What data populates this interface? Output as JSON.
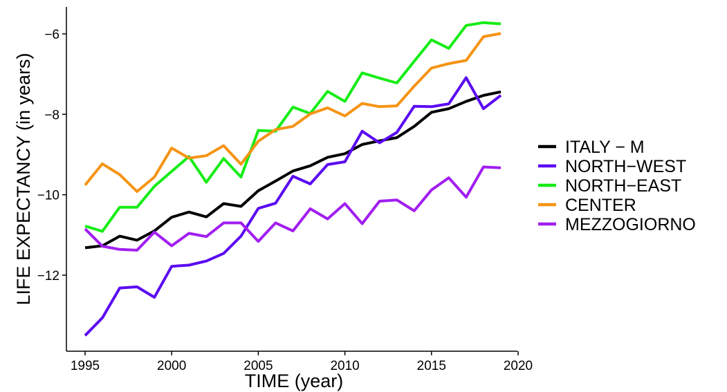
{
  "chart_data": {
    "type": "line",
    "title": "",
    "xlabel": "TIME (year)",
    "ylabel": "LIFE EXPECTANCY (in years)",
    "xlim": [
      1995,
      2020
    ],
    "ylim": [
      -13.7,
      -5.4
    ],
    "x_ticks": [
      1995,
      2000,
      2005,
      2010,
      2015,
      2020
    ],
    "y_ticks": [
      -12,
      -10,
      -8,
      -6
    ],
    "grid": false,
    "legend_position": "right",
    "x": [
      1995,
      1996,
      1997,
      1998,
      1999,
      2000,
      2001,
      2002,
      2003,
      2004,
      2005,
      2006,
      2007,
      2008,
      2009,
      2010,
      2011,
      2012,
      2013,
      2014,
      2015,
      2016,
      2017,
      2018,
      2019
    ],
    "series": [
      {
        "name": "ITALY − M",
        "color": "#000000",
        "values": [
          -11.32,
          -11.27,
          -11.03,
          -11.13,
          -10.9,
          -10.56,
          -10.43,
          -10.55,
          -10.22,
          -10.29,
          -9.9,
          -9.66,
          -9.41,
          -9.28,
          -9.07,
          -8.98,
          -8.75,
          -8.66,
          -8.58,
          -8.3,
          -7.95,
          -7.86,
          -7.68,
          -7.53,
          -7.44
        ]
      },
      {
        "name": "NORTH−WEST",
        "color": "#5b0bf2",
        "values": [
          -13.5,
          -13.06,
          -12.32,
          -12.29,
          -12.55,
          -11.78,
          -11.75,
          -11.65,
          -11.46,
          -11.03,
          -10.34,
          -10.21,
          -9.54,
          -9.73,
          -9.25,
          -9.18,
          -8.42,
          -8.71,
          -8.45,
          -7.8,
          -7.81,
          -7.74,
          -7.09,
          -7.86,
          -7.53
        ]
      },
      {
        "name": "NORTH−EAST",
        "color": "#16ec16",
        "values": [
          -10.78,
          -10.91,
          -10.31,
          -10.31,
          -9.79,
          -9.42,
          -9.05,
          -9.69,
          -9.1,
          -9.56,
          -8.4,
          -8.42,
          -7.82,
          -7.98,
          -7.43,
          -7.68,
          -6.97,
          -7.1,
          -7.22,
          -6.68,
          -6.15,
          -6.36,
          -5.79,
          -5.72,
          -5.75
        ]
      },
      {
        "name": "CENTER",
        "color": "#f59414",
        "values": [
          -9.76,
          -9.23,
          -9.5,
          -9.92,
          -9.56,
          -8.84,
          -9.09,
          -9.03,
          -8.78,
          -9.24,
          -8.67,
          -8.38,
          -8.3,
          -7.99,
          -7.84,
          -8.04,
          -7.73,
          -7.81,
          -7.79,
          -7.3,
          -6.85,
          -6.74,
          -6.66,
          -6.07,
          -5.99
        ]
      },
      {
        "name": "MEZZOGIORNO",
        "color": "#a21ef0",
        "values": [
          -10.85,
          -11.28,
          -11.36,
          -11.38,
          -10.93,
          -11.27,
          -10.96,
          -11.04,
          -10.7,
          -10.7,
          -11.16,
          -10.7,
          -10.9,
          -10.35,
          -10.6,
          -10.22,
          -10.72,
          -10.16,
          -10.13,
          -10.4,
          -9.88,
          -9.58,
          -10.06,
          -9.31,
          -9.33
        ]
      }
    ]
  }
}
